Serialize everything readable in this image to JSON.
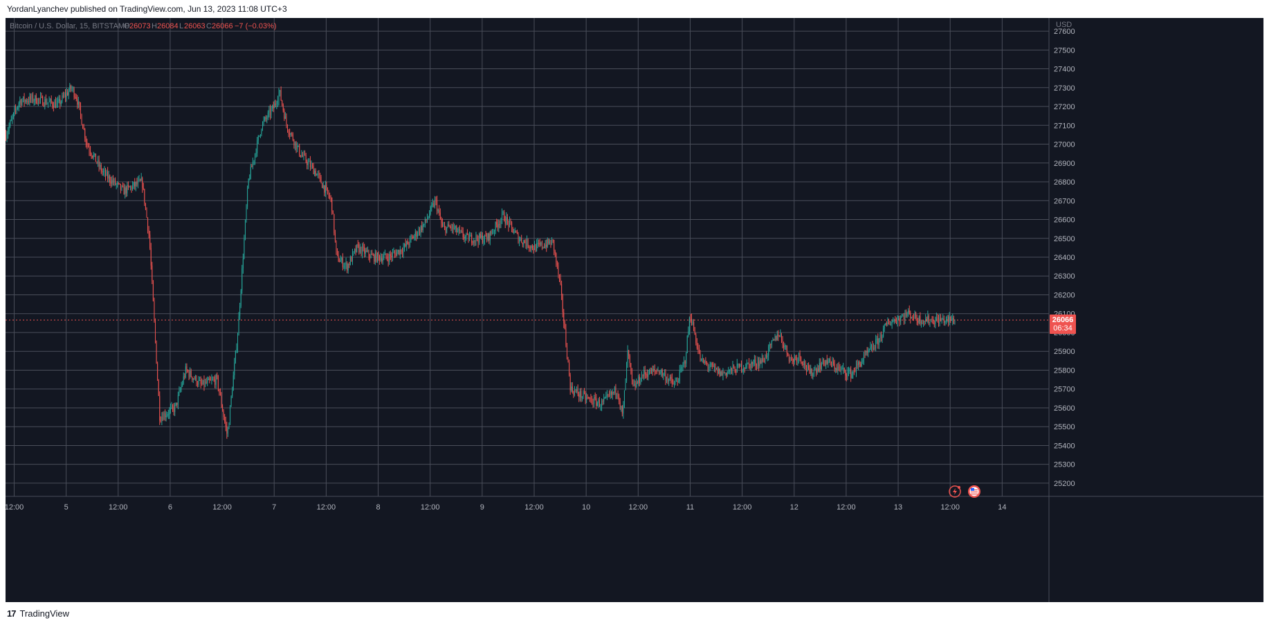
{
  "header": {
    "publish_line": "YordanLyanchev published on TradingView.com, Jun 13, 2023 11:08 UTC+3"
  },
  "footer": {
    "brand": "TradingView",
    "logo_glyph": "17"
  },
  "legend": {
    "symbol": "Bitcoin / U.S. Dollar, 15, BITSTAMP",
    "o_label": "O",
    "o_value": "26073",
    "h_label": "H",
    "h_value": "26084",
    "l_label": "L",
    "l_value": "26063",
    "c_label": "C",
    "c_value": "26066",
    "change": "−7 (−0.03%)"
  },
  "price_tag": {
    "price": "26066",
    "countdown": "06:34"
  },
  "axis": {
    "currency": "USD"
  },
  "colors": {
    "background": "#131722",
    "grid": "#4a4e5a",
    "up": "#26a69a",
    "down": "#ef5350",
    "axis_text": "#b2b5be",
    "legend_text": "#787b86"
  },
  "icons": [
    "lightning-icon",
    "us-flag-icon"
  ],
  "chart_data": {
    "type": "candlestick",
    "title": "Bitcoin / U.S. Dollar, 15, BITSTAMP",
    "timeframe": "15",
    "ylim": [
      25130,
      27670
    ],
    "y_ticks": [
      25200,
      25300,
      25400,
      25500,
      25600,
      25700,
      25800,
      25900,
      26000,
      26100,
      26200,
      26300,
      26400,
      26500,
      26600,
      26700,
      26800,
      26900,
      27000,
      27100,
      27200,
      27300,
      27400,
      27500,
      27600
    ],
    "x_ticks": [
      "12:00",
      "5",
      "12:00",
      "6",
      "12:00",
      "7",
      "12:00",
      "8",
      "12:00",
      "9",
      "12:00",
      "10",
      "12:00",
      "11",
      "12:00",
      "12",
      "12:00",
      "13",
      "12:00",
      "14"
    ],
    "x_ticks_days": [
      4.5,
      5,
      5.5,
      6,
      6.5,
      7,
      7.5,
      8,
      8.5,
      9,
      9.5,
      10,
      10.5,
      11,
      11.5,
      12,
      12.5,
      13,
      13.5,
      14
    ],
    "xlim_days": [
      4.417,
      14.45
    ],
    "last_price": 26066,
    "grid": true,
    "key_points": {
      "day": [
        4.42,
        4.55,
        4.7,
        4.92,
        5.05,
        5.1,
        5.2,
        5.35,
        5.55,
        5.73,
        5.8,
        5.9,
        6.05,
        6.15,
        6.3,
        6.45,
        6.55,
        6.65,
        6.75,
        6.88,
        7.0,
        7.05,
        7.12,
        7.25,
        7.4,
        7.55,
        7.6,
        7.7,
        7.8,
        7.95,
        8.1,
        8.25,
        8.45,
        8.55,
        8.62,
        8.7,
        8.85,
        9.05,
        9.2,
        9.35,
        9.5,
        9.68,
        9.75,
        9.85,
        10.0,
        10.15,
        10.3,
        10.35,
        10.4,
        10.45,
        10.55,
        10.7,
        10.85,
        10.88,
        10.95,
        11.0,
        11.1,
        11.3,
        11.5,
        11.7,
        11.85,
        11.97,
        12.05,
        12.15,
        12.3,
        12.45,
        12.55,
        12.65,
        12.8,
        12.9,
        13.1,
        13.2,
        13.3,
        13.4,
        13.5,
        13.55
      ],
      "price": [
        27050,
        27230,
        27240,
        27210,
        27300,
        27250,
        27000,
        26850,
        26750,
        26800,
        26500,
        25550,
        25600,
        25800,
        25720,
        25750,
        25450,
        26000,
        26800,
        27100,
        27200,
        27280,
        27100,
        26950,
        26850,
        26700,
        26400,
        26350,
        26450,
        26400,
        26400,
        26450,
        26580,
        26700,
        26550,
        26560,
        26500,
        26500,
        26620,
        26500,
        26450,
        26480,
        26250,
        25700,
        25650,
        25620,
        25700,
        25550,
        25900,
        25700,
        25780,
        25800,
        25720,
        25750,
        25850,
        26100,
        25850,
        25780,
        25820,
        25850,
        26000,
        25850,
        25880,
        25780,
        25850,
        25800,
        25780,
        25850,
        25950,
        26050,
        26100,
        26070,
        26066,
        26066,
        26066,
        26066
      ]
    }
  }
}
